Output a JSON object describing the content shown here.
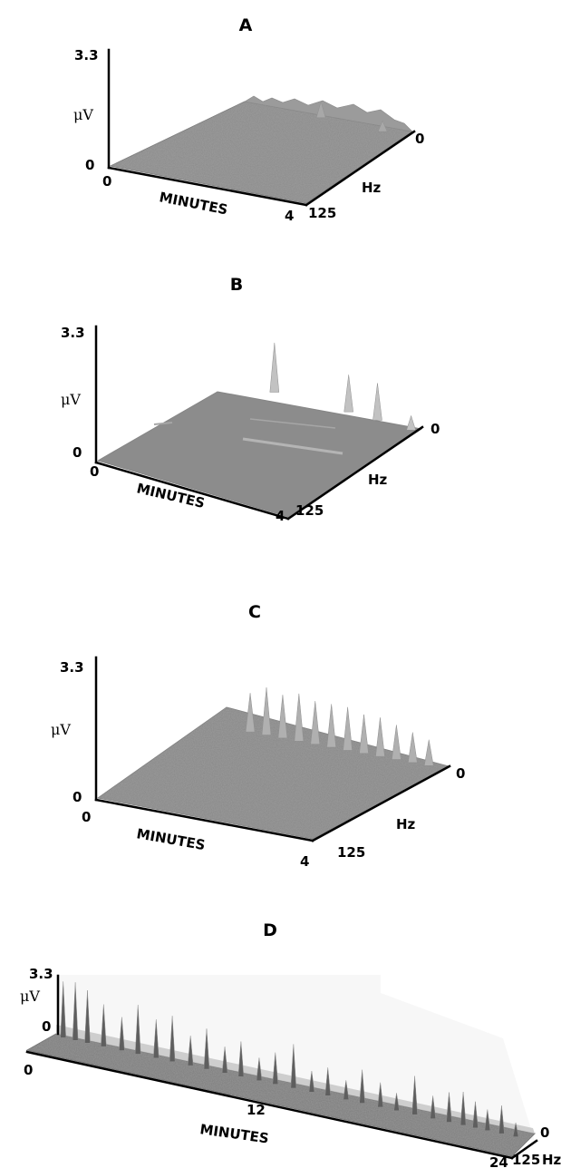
{
  "chart_data": [
    {
      "type": "surface",
      "title": "A",
      "zlabel": "μV",
      "xlabel": "MINUTES",
      "ylabel": "Hz",
      "zlim": [
        0,
        3.3
      ],
      "xlim": [
        0,
        4
      ],
      "ylim": [
        125,
        0
      ],
      "z_ticks": [
        "3.3",
        "0"
      ],
      "x_ticks": [
        "0",
        "4"
      ],
      "y_ticks": [
        "125",
        "0"
      ],
      "peaks": [
        {
          "minute": 2.2,
          "hz": 5,
          "uv": 0.45
        },
        {
          "minute": 3.5,
          "hz": 8,
          "uv": 0.3
        }
      ]
    },
    {
      "type": "surface",
      "title": "B",
      "zlabel": "μV",
      "xlabel": "MINUTES",
      "ylabel": "Hz",
      "zlim": [
        0,
        3.3
      ],
      "xlim": [
        0,
        4
      ],
      "ylim": [
        125,
        0
      ],
      "z_ticks": [
        "3.3",
        "0"
      ],
      "x_ticks": [
        "0",
        "4"
      ],
      "y_ticks": [
        "125",
        "0"
      ],
      "peaks": [
        {
          "minute": 1.1,
          "hz": 8,
          "uv": 1.2
        },
        {
          "minute": 2.6,
          "hz": 6,
          "uv": 0.9
        },
        {
          "minute": 3.2,
          "hz": 6,
          "uv": 0.9
        },
        {
          "minute": 3.9,
          "hz": 6,
          "uv": 0.35
        }
      ]
    },
    {
      "type": "surface",
      "title": "C",
      "zlabel": "μV",
      "xlabel": "MINUTES",
      "ylabel": "Hz",
      "zlim": [
        0,
        3.3
      ],
      "xlim": [
        0,
        4
      ],
      "ylim": [
        125,
        0
      ],
      "z_ticks": [
        "3.3",
        "0"
      ],
      "x_ticks": [
        "0",
        "4"
      ],
      "y_ticks": [
        "125",
        "0"
      ],
      "peaks": [
        {
          "minute": 0.4,
          "hz": 4,
          "uv": 0.9
        },
        {
          "minute": 0.7,
          "hz": 4,
          "uv": 1.1
        },
        {
          "minute": 1.0,
          "hz": 4,
          "uv": 1.0
        },
        {
          "minute": 1.3,
          "hz": 4,
          "uv": 1.1
        },
        {
          "minute": 1.6,
          "hz": 4,
          "uv": 1.0
        },
        {
          "minute": 1.9,
          "hz": 4,
          "uv": 1.0
        },
        {
          "minute": 2.2,
          "hz": 4,
          "uv": 1.0
        },
        {
          "minute": 2.5,
          "hz": 4,
          "uv": 0.9
        },
        {
          "minute": 2.8,
          "hz": 4,
          "uv": 0.9
        },
        {
          "minute": 3.1,
          "hz": 4,
          "uv": 0.8
        },
        {
          "minute": 3.4,
          "hz": 4,
          "uv": 0.7
        },
        {
          "minute": 3.7,
          "hz": 4,
          "uv": 0.6
        }
      ]
    },
    {
      "type": "surface",
      "title": "D",
      "zlabel": "μV",
      "xlabel": "MINUTES",
      "ylabel": "Hz",
      "zlim": [
        0,
        3.3
      ],
      "xlim": [
        0,
        24
      ],
      "ylim": [
        125,
        0
      ],
      "z_ticks": [
        "3.3",
        "0"
      ],
      "x_ticks": [
        "0",
        "12",
        "24"
      ],
      "y_ticks": [
        "125",
        "0"
      ],
      "peaks": [
        {
          "minute": 0.6,
          "hz": 3,
          "uv": 3.2
        },
        {
          "minute": 1.2,
          "hz": 3,
          "uv": 3.3
        },
        {
          "minute": 1.8,
          "hz": 3,
          "uv": 3.0
        },
        {
          "minute": 2.6,
          "hz": 3,
          "uv": 2.4
        },
        {
          "minute": 3.5,
          "hz": 3,
          "uv": 1.9
        },
        {
          "minute": 4.3,
          "hz": 3,
          "uv": 2.8
        },
        {
          "minute": 5.2,
          "hz": 3,
          "uv": 2.2
        },
        {
          "minute": 6.0,
          "hz": 3,
          "uv": 2.6
        },
        {
          "minute": 6.9,
          "hz": 3,
          "uv": 1.7
        },
        {
          "minute": 7.7,
          "hz": 3,
          "uv": 2.3
        },
        {
          "minute": 8.6,
          "hz": 3,
          "uv": 1.5
        },
        {
          "minute": 9.4,
          "hz": 3,
          "uv": 2.0
        },
        {
          "minute": 10.3,
          "hz": 3,
          "uv": 1.3
        },
        {
          "minute": 11.1,
          "hz": 3,
          "uv": 1.8
        },
        {
          "minute": 12.0,
          "hz": 3,
          "uv": 2.5
        },
        {
          "minute": 12.9,
          "hz": 3,
          "uv": 1.2
        },
        {
          "minute": 13.7,
          "hz": 3,
          "uv": 1.6
        },
        {
          "minute": 14.6,
          "hz": 3,
          "uv": 1.1
        },
        {
          "minute": 15.4,
          "hz": 3,
          "uv": 1.9
        },
        {
          "minute": 16.3,
          "hz": 3,
          "uv": 1.4
        },
        {
          "minute": 17.1,
          "hz": 3,
          "uv": 1.0
        },
        {
          "minute": 18.0,
          "hz": 3,
          "uv": 2.2
        },
        {
          "minute": 18.9,
          "hz": 3,
          "uv": 1.3
        },
        {
          "minute": 19.7,
          "hz": 3,
          "uv": 1.7
        },
        {
          "minute": 20.4,
          "hz": 3,
          "uv": 1.9
        },
        {
          "minute": 21.0,
          "hz": 3,
          "uv": 1.5
        },
        {
          "minute": 21.6,
          "hz": 3,
          "uv": 1.2
        },
        {
          "minute": 22.3,
          "hz": 3,
          "uv": 1.6
        },
        {
          "minute": 23.0,
          "hz": 3,
          "uv": 0.8
        }
      ]
    }
  ]
}
